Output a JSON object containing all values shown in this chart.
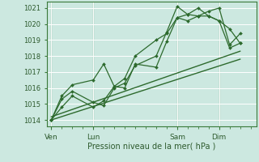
{
  "bg_color": "#cce8e0",
  "plot_bg_color": "#cce8e0",
  "grid_color": "#ffffff",
  "line_color": "#2d6a2d",
  "marker_color": "#2d6a2d",
  "ylabel_ticks": [
    1014,
    1015,
    1016,
    1017,
    1018,
    1019,
    1020,
    1021
  ],
  "xlabel": "Pression niveau de la mer( hPa )",
  "xtick_labels": [
    "Ven",
    "Lun",
    "Sam",
    "Dim"
  ],
  "xtick_positions": [
    0,
    36,
    108,
    144
  ],
  "vline_positions": [
    0,
    36,
    108,
    144
  ],
  "ylim": [
    1013.6,
    1021.4
  ],
  "xlim": [
    -4,
    176
  ],
  "series1_x": [
    0,
    9,
    18,
    36,
    45,
    54,
    63,
    72,
    90,
    99,
    108,
    117,
    126,
    135,
    144,
    153,
    162
  ],
  "series1_y": [
    1014.0,
    1014.8,
    1015.5,
    1014.8,
    1015.2,
    1016.1,
    1016.0,
    1017.5,
    1017.3,
    1018.9,
    1020.4,
    1020.2,
    1020.5,
    1020.5,
    1020.2,
    1019.7,
    1018.8
  ],
  "series2_x": [
    0,
    9,
    18,
    36,
    45,
    54,
    63,
    72,
    90,
    99,
    108,
    117,
    126,
    135,
    144,
    153,
    162
  ],
  "series2_y": [
    1014.0,
    1015.3,
    1015.8,
    1015.1,
    1014.9,
    1016.0,
    1016.3,
    1017.4,
    1018.0,
    1019.5,
    1021.1,
    1020.6,
    1020.5,
    1020.8,
    1021.0,
    1018.7,
    1019.4
  ],
  "series3_x": [
    0,
    9,
    18,
    36,
    45,
    54,
    63,
    72,
    90,
    99,
    108,
    117,
    126,
    135,
    144,
    153,
    162
  ],
  "series3_y": [
    1014.0,
    1015.5,
    1016.2,
    1016.5,
    1017.5,
    1016.1,
    1016.6,
    1018.0,
    1019.0,
    1019.4,
    1020.4,
    1020.6,
    1021.0,
    1020.5,
    1020.2,
    1018.5,
    1018.8
  ],
  "trend1_x": [
    0,
    162
  ],
  "trend1_y": [
    1014.0,
    1017.8
  ],
  "trend2_x": [
    0,
    162
  ],
  "trend2_y": [
    1014.2,
    1018.3
  ]
}
